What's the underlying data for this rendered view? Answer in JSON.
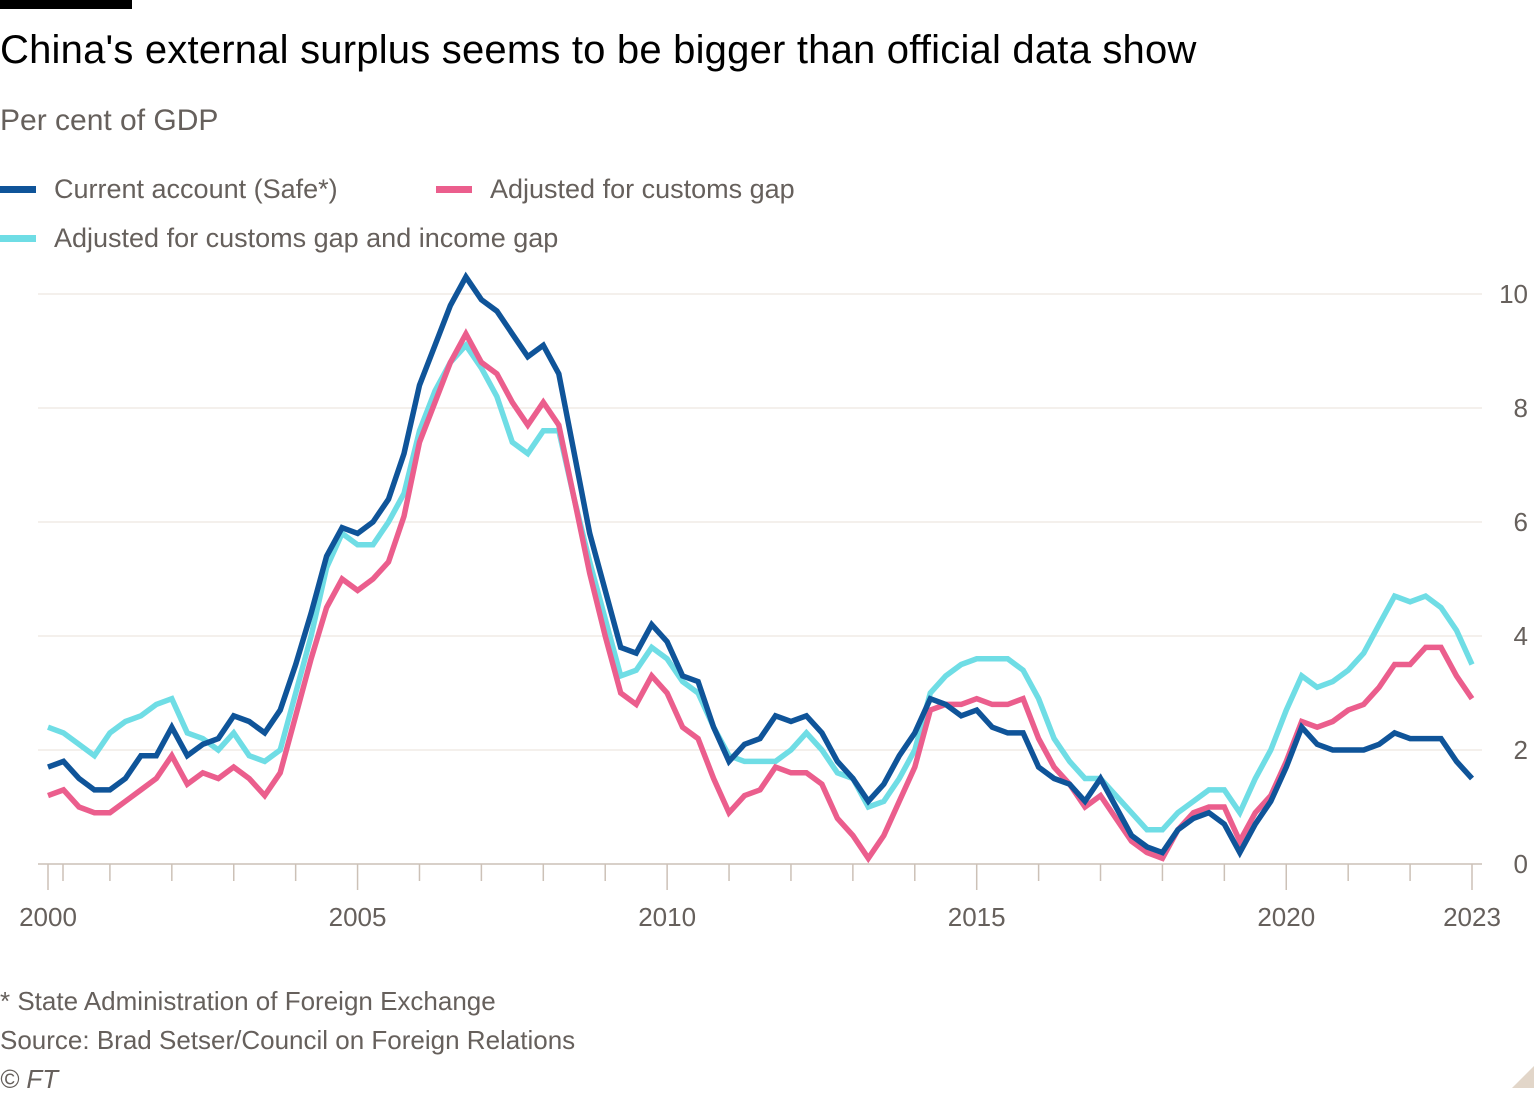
{
  "header": {
    "title": "China's external surplus seems to be bigger than official data show",
    "subtitle": "Per cent of GDP"
  },
  "legend": [
    {
      "label": "Current account (Safe*)",
      "color": "#0f5499"
    },
    {
      "label": "Adjusted for customs gap",
      "color": "#eb5e8d"
    },
    {
      "label": "Adjusted for customs gap and income gap",
      "color": "#6fdde5"
    }
  ],
  "footer": {
    "note": "* State Administration of Foreign Exchange",
    "source": "Source: Brad Setser/Council on Foreign Relations",
    "copyright": "© FT"
  },
  "chart_data": {
    "type": "line",
    "title": "China's external surplus seems to be bigger than official data show",
    "subtitle": "Per cent of GDP",
    "xlabel": "",
    "ylabel": "Per cent of GDP",
    "x_start": 2000,
    "x_step": 0.25,
    "xlim": [
      2000,
      2023
    ],
    "ylim": [
      0,
      10
    ],
    "yticks": [
      0,
      2,
      4,
      6,
      8,
      10
    ],
    "xticks_labeled": [
      2000,
      2005,
      2010,
      2015,
      2020,
      2023
    ],
    "grid": true,
    "legend_position": "top-left",
    "y_axis_side": "right",
    "series": [
      {
        "name": "Current account (Safe*)",
        "color": "#0f5499",
        "values": [
          1.7,
          1.8,
          1.5,
          1.3,
          1.3,
          1.5,
          1.9,
          1.9,
          2.4,
          1.9,
          2.1,
          2.2,
          2.6,
          2.5,
          2.3,
          2.7,
          3.5,
          4.4,
          5.4,
          5.9,
          5.8,
          6.0,
          6.4,
          7.2,
          8.4,
          9.1,
          9.8,
          10.3,
          9.9,
          9.7,
          9.3,
          8.9,
          9.1,
          8.6,
          7.2,
          5.8,
          4.8,
          3.8,
          3.7,
          4.2,
          3.9,
          3.3,
          3.2,
          2.4,
          1.8,
          2.1,
          2.2,
          2.6,
          2.5,
          2.6,
          2.3,
          1.8,
          1.5,
          1.1,
          1.4,
          1.9,
          2.3,
          2.9,
          2.8,
          2.6,
          2.7,
          2.4,
          2.3,
          2.3,
          1.7,
          1.5,
          1.4,
          1.1,
          1.5,
          1.0,
          0.5,
          0.3,
          0.2,
          0.6,
          0.8,
          0.9,
          0.7,
          0.2,
          0.7,
          1.1,
          1.7,
          2.4,
          2.1,
          2.0,
          2.0,
          2.0,
          2.1,
          2.3,
          2.2,
          2.2,
          2.2,
          1.8,
          1.5
        ]
      },
      {
        "name": "Adjusted for customs gap",
        "color": "#eb5e8d",
        "values": [
          1.2,
          1.3,
          1.0,
          0.9,
          0.9,
          1.1,
          1.3,
          1.5,
          1.9,
          1.4,
          1.6,
          1.5,
          1.7,
          1.5,
          1.2,
          1.6,
          2.6,
          3.6,
          4.5,
          5.0,
          4.8,
          5.0,
          5.3,
          6.1,
          7.4,
          8.1,
          8.8,
          9.3,
          8.8,
          8.6,
          8.1,
          7.7,
          8.1,
          7.7,
          6.4,
          5.1,
          4.0,
          3.0,
          2.8,
          3.3,
          3.0,
          2.4,
          2.2,
          1.5,
          0.9,
          1.2,
          1.3,
          1.7,
          1.6,
          1.6,
          1.4,
          0.8,
          0.5,
          0.1,
          0.5,
          1.1,
          1.7,
          2.7,
          2.8,
          2.8,
          2.9,
          2.8,
          2.8,
          2.9,
          2.2,
          1.7,
          1.4,
          1.0,
          1.2,
          0.8,
          0.4,
          0.2,
          0.1,
          0.6,
          0.9,
          1.0,
          1.0,
          0.4,
          0.9,
          1.2,
          1.8,
          2.5,
          2.4,
          2.5,
          2.7,
          2.8,
          3.1,
          3.5,
          3.5,
          3.8,
          3.8,
          3.3,
          2.9
        ]
      },
      {
        "name": "Adjusted for customs gap and income gap",
        "color": "#6fdde5",
        "values": [
          2.4,
          2.3,
          2.1,
          1.9,
          2.3,
          2.5,
          2.6,
          2.8,
          2.9,
          2.3,
          2.2,
          2.0,
          2.3,
          1.9,
          1.8,
          2.0,
          3.0,
          4.0,
          5.2,
          5.8,
          5.6,
          5.6,
          6.0,
          6.5,
          7.6,
          8.3,
          8.8,
          9.1,
          8.7,
          8.2,
          7.4,
          7.2,
          7.6,
          7.6,
          6.4,
          5.3,
          4.3,
          3.3,
          3.4,
          3.8,
          3.6,
          3.2,
          3.0,
          2.4,
          1.9,
          1.8,
          1.8,
          1.8,
          2.0,
          2.3,
          2.0,
          1.6,
          1.5,
          1.0,
          1.1,
          1.5,
          2.0,
          3.0,
          3.3,
          3.5,
          3.6,
          3.6,
          3.6,
          3.4,
          2.9,
          2.2,
          1.8,
          1.5,
          1.5,
          1.2,
          0.9,
          0.6,
          0.6,
          0.9,
          1.1,
          1.3,
          1.3,
          0.9,
          1.5,
          2.0,
          2.7,
          3.3,
          3.1,
          3.2,
          3.4,
          3.7,
          4.2,
          4.7,
          4.6,
          4.7,
          4.5,
          4.1,
          3.5
        ]
      }
    ]
  }
}
